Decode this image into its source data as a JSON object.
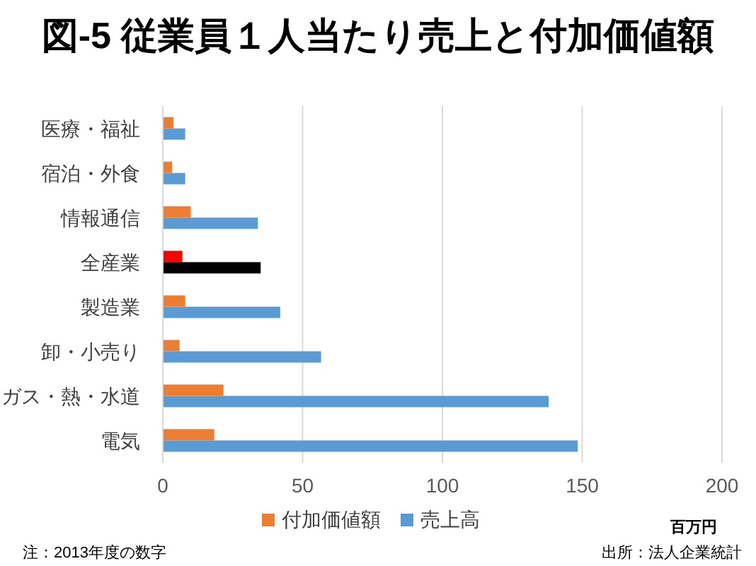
{
  "chart_data": {
    "type": "bar",
    "orientation": "horizontal",
    "title": "図-5 従業員１人当たり売上と付加価値額",
    "xlabel": "百万円",
    "categories": [
      "医療・福祉",
      "宿泊・外食",
      "情報通信",
      "全産業",
      "製造業",
      "卸・小売り",
      "ガス・熱・水道",
      "電気"
    ],
    "series": [
      {
        "name": "付加価値額",
        "color": "#ed7d31",
        "colors": [
          "#ed7d31",
          "#ed7d31",
          "#ed7d31",
          "#ff0000",
          "#ed7d31",
          "#ed7d31",
          "#ed7d31",
          "#ed7d31"
        ],
        "values": [
          3.8,
          3.3,
          10,
          7,
          8,
          6,
          21.7,
          18.4
        ]
      },
      {
        "name": "売上高",
        "color": "#5b9bd5",
        "colors": [
          "#5b9bd5",
          "#5b9bd5",
          "#5b9bd5",
          "#000000",
          "#5b9bd5",
          "#5b9bd5",
          "#5b9bd5",
          "#5b9bd5"
        ],
        "values": [
          8,
          8,
          34,
          35,
          42,
          56.6,
          138,
          148.4
        ]
      }
    ],
    "xlim": [
      0,
      200
    ],
    "xticks": [
      0,
      50,
      100,
      150,
      200
    ],
    "grid": "x",
    "legend": "bottom",
    "annotations": [
      "注：2013年度の数字",
      "出所：法人企業統計"
    ]
  }
}
